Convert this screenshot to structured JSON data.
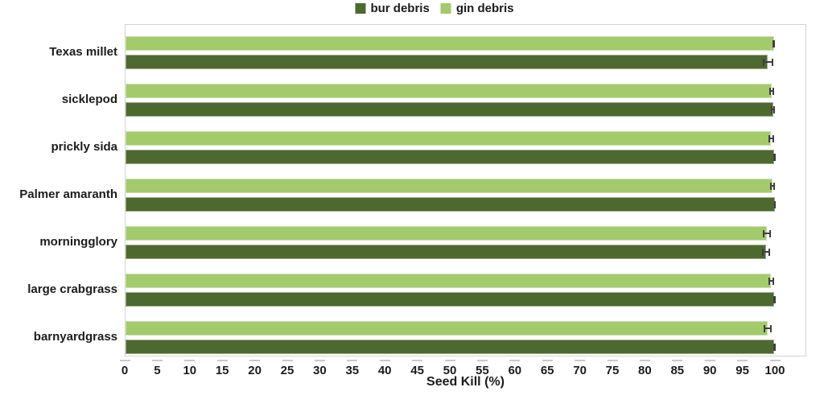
{
  "legend": {
    "items": [
      {
        "label": "bur debris",
        "color": "#4d692f"
      },
      {
        "label": "gin debris",
        "color": "#a3ca6b"
      }
    ]
  },
  "chart_data": {
    "type": "bar",
    "orientation": "horizontal",
    "title": "",
    "xlabel": "Seed Kill (%)",
    "xlim": [
      0,
      105
    ],
    "xticks": [
      0,
      5,
      10,
      15,
      20,
      25,
      30,
      35,
      40,
      45,
      50,
      55,
      60,
      65,
      70,
      75,
      80,
      85,
      90,
      95,
      100
    ],
    "grid": false,
    "legend_position": "top-center",
    "categories": [
      "Texas millet",
      "sicklepod",
      "prickly sida",
      "Palmer amaranth",
      "morningglory",
      "large crabgrass",
      "barnyardgrass"
    ],
    "row_order": [
      "gin debris",
      "bur debris"
    ],
    "series": [
      {
        "name": "bur debris",
        "color": "#4d692f",
        "values": [
          98.8,
          99.6,
          99.8,
          99.9,
          98.5,
          99.8,
          99.8
        ],
        "errors": [
          0.8,
          0.3,
          0.2,
          0.1,
          0.6,
          0.2,
          0.2
        ]
      },
      {
        "name": "gin debris",
        "color": "#a3ca6b",
        "values": [
          99.7,
          99.4,
          99.3,
          99.5,
          98.6,
          99.3,
          98.8
        ],
        "errors": [
          0.2,
          0.4,
          0.4,
          0.4,
          0.6,
          0.4,
          0.6
        ]
      }
    ],
    "error_bar_color": "#3f3f3f"
  },
  "colors": {
    "axis_border": "#d4d4d4",
    "tick": "#c9c9c9",
    "text": "#1c1c1c",
    "background": "#ffffff"
  }
}
